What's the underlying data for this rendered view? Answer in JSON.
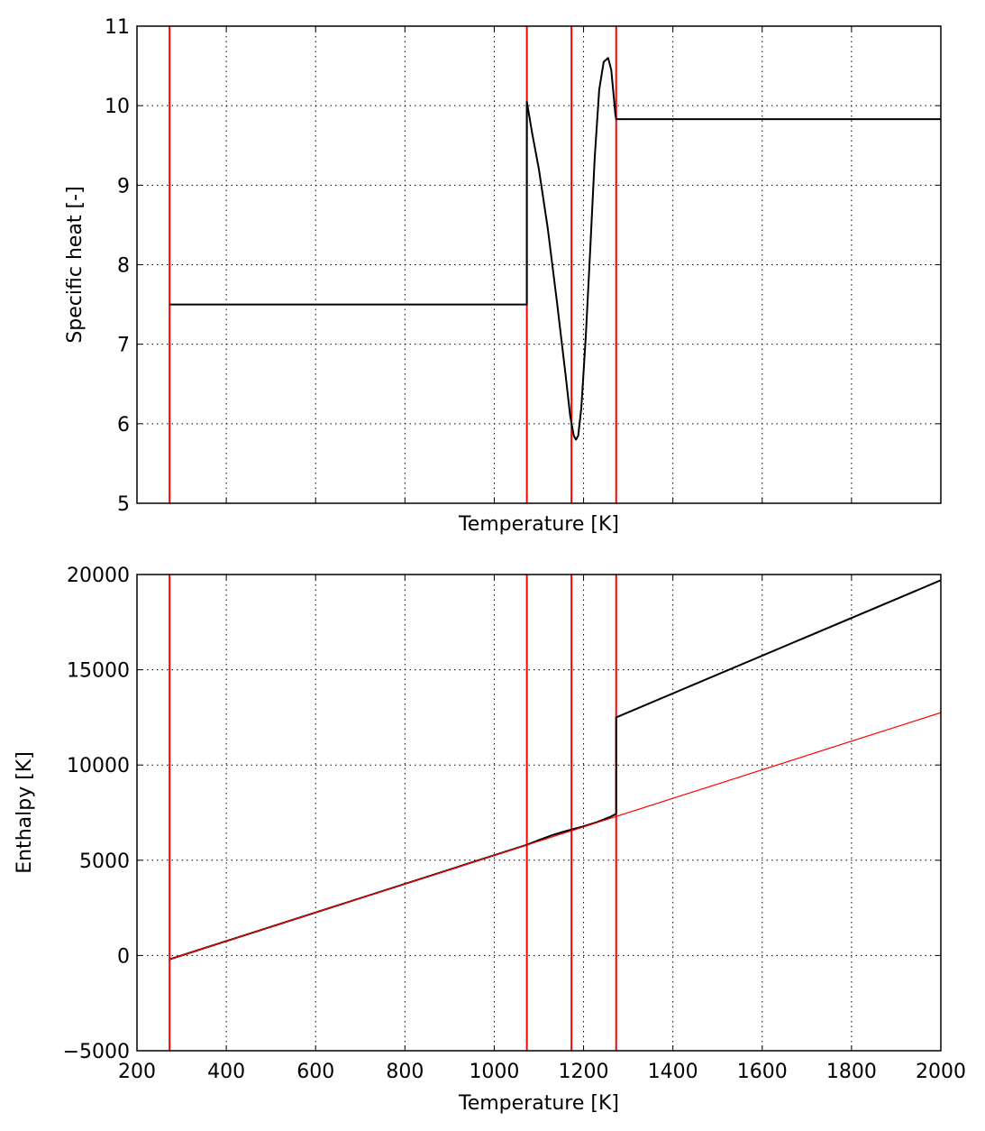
{
  "chart_data": [
    {
      "type": "line",
      "xlabel": "Temperature [K]",
      "ylabel": "Specific heat [-]",
      "xlim": [
        200,
        2000
      ],
      "ylim": [
        5,
        11
      ],
      "xticks": [
        200,
        400,
        600,
        800,
        1000,
        1200,
        1400,
        1600,
        1800,
        2000
      ],
      "xtick_labels_visible": false,
      "yticks": [
        5,
        6,
        7,
        8,
        9,
        10,
        11
      ],
      "ytick_labels": [
        "5",
        "6",
        "7",
        "8",
        "9",
        "10",
        "11"
      ],
      "grid": true,
      "vlines": {
        "x": [
          273,
          1073,
          1173,
          1273
        ],
        "color": "#ff0000"
      },
      "series": [
        {
          "color": "#000000",
          "x": [
            273,
            1073,
            1073,
            1085,
            1100,
            1120,
            1140,
            1160,
            1170,
            1178,
            1183,
            1188,
            1195,
            1205,
            1215,
            1225,
            1235,
            1245,
            1255,
            1262,
            1267,
            1271,
            1273,
            1273,
            2000
          ],
          "y": [
            7.5,
            7.5,
            10.05,
            9.65,
            9.2,
            8.45,
            7.55,
            6.6,
            6.1,
            5.85,
            5.8,
            5.85,
            6.2,
            7.1,
            8.2,
            9.35,
            10.2,
            10.55,
            10.6,
            10.45,
            10.15,
            9.9,
            9.83,
            9.83,
            9.83
          ]
        }
      ]
    },
    {
      "type": "line",
      "xlabel": "Temperature [K]",
      "ylabel": "Enthalpy [K]",
      "xlim": [
        200,
        2000
      ],
      "ylim": [
        -5000,
        20000
      ],
      "xticks": [
        200,
        400,
        600,
        800,
        1000,
        1200,
        1400,
        1600,
        1800,
        2000
      ],
      "xtick_labels": [
        "200",
        "400",
        "600",
        "800",
        "1000",
        "1200",
        "1400",
        "1600",
        "1800",
        "2000"
      ],
      "yticks": [
        -5000,
        0,
        5000,
        10000,
        15000,
        20000
      ],
      "ytick_labels": [
        "−5000",
        "0",
        "5000",
        "10000",
        "15000",
        "20000"
      ],
      "grid": true,
      "vlines": {
        "x": [
          273,
          1073,
          1173,
          1273
        ],
        "color": "#ff0000"
      },
      "series": [
        {
          "color": "#000000",
          "x": [
            273,
            1073,
            1100,
            1130,
            1160,
            1173,
            1200,
            1230,
            1260,
            1272,
            1273,
            1273,
            2000
          ],
          "y": [
            -200,
            5810,
            6060,
            6320,
            6530,
            6610,
            6780,
            7000,
            7280,
            7420,
            7450,
            12500,
            19700
          ]
        },
        {
          "color": "#ff0000",
          "x": [
            273,
            2000
          ],
          "y": [
            -200,
            12750
          ]
        }
      ]
    }
  ]
}
